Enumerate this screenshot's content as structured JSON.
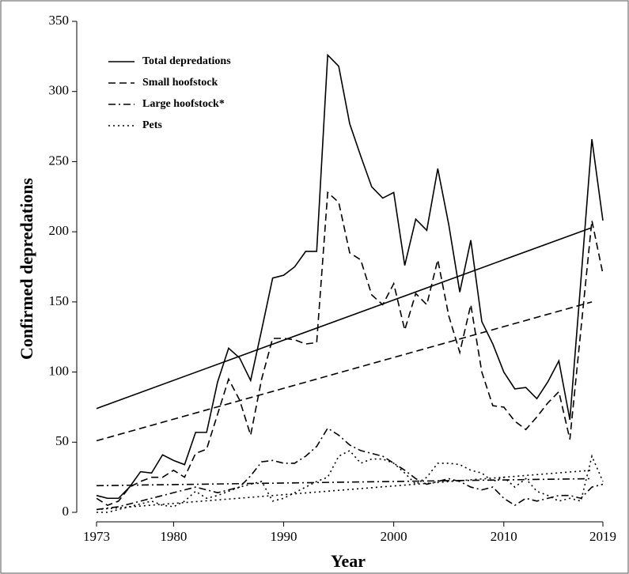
{
  "chart_data": {
    "type": "line",
    "xlabel": "Year",
    "ylabel": "Confirmed depredations",
    "x": [
      1973,
      1974,
      1975,
      1976,
      1977,
      1978,
      1979,
      1980,
      1981,
      1982,
      1983,
      1984,
      1985,
      1986,
      1987,
      1988,
      1989,
      1990,
      1991,
      1992,
      1993,
      1994,
      1995,
      1996,
      1997,
      1998,
      1999,
      2000,
      2001,
      2002,
      2003,
      2004,
      2005,
      2006,
      2007,
      2008,
      2009,
      2010,
      2011,
      2012,
      2013,
      2014,
      2015,
      2016,
      2017,
      2018,
      2019
    ],
    "trend_x": [
      1973,
      2018
    ],
    "series": [
      {
        "name": "Total depredations",
        "color": "#000000",
        "dash": "solid",
        "values": [
          12,
          10,
          10,
          18,
          29,
          28,
          41,
          37,
          34,
          57,
          57,
          93,
          117,
          110,
          94,
          130,
          167,
          169,
          175,
          186,
          186,
          326,
          318,
          277,
          254,
          232,
          224,
          228,
          176,
          209,
          201,
          245,
          205,
          157,
          194,
          136,
          120,
          100,
          88,
          89,
          81,
          93,
          108,
          66,
          165,
          266,
          208
        ],
        "trend": [
          74,
          203
        ]
      },
      {
        "name": "Small hoofstock",
        "color": "#000000",
        "dash": "dashed",
        "values": [
          10,
          5,
          8,
          18,
          22,
          25,
          25,
          30,
          25,
          42,
          45,
          70,
          95,
          80,
          55,
          95,
          124,
          124,
          123,
          120,
          121,
          228,
          221,
          185,
          180,
          155,
          148,
          163,
          130,
          156,
          148,
          180,
          140,
          114,
          148,
          100,
          76,
          75,
          65,
          59,
          68,
          78,
          86,
          52,
          130,
          208,
          170
        ],
        "trend": [
          51,
          150
        ]
      },
      {
        "name": "Large hoofstock*",
        "color": "#000000",
        "dash": "dashdot",
        "values": [
          2,
          3,
          4,
          6,
          8,
          10,
          12,
          14,
          16,
          18,
          16,
          14,
          16,
          18,
          26,
          36,
          37,
          35,
          35,
          40,
          47,
          60,
          55,
          48,
          44,
          42,
          40,
          35,
          30,
          24,
          20,
          22,
          24,
          22,
          18,
          16,
          18,
          10,
          5,
          10,
          8,
          10,
          12,
          12,
          10,
          18,
          20
        ],
        "trend": [
          19,
          24
        ]
      },
      {
        "name": "Pets",
        "color": "#000000",
        "dash": "dotted",
        "values": [
          0,
          0,
          2,
          4,
          6,
          8,
          5,
          4,
          8,
          15,
          10,
          12,
          15,
          18,
          20,
          22,
          8,
          10,
          14,
          18,
          22,
          25,
          40,
          44,
          35,
          38,
          38,
          35,
          28,
          20,
          25,
          35,
          35,
          34,
          30,
          28,
          22,
          25,
          18,
          24,
          15,
          12,
          8,
          10,
          8,
          40,
          22
        ],
        "trend": [
          2,
          30
        ]
      }
    ],
    "xlim": [
      1973,
      2019
    ],
    "xticks": [
      1973,
      1980,
      1990,
      2000,
      2010,
      2019
    ],
    "ylim": [
      0,
      350
    ],
    "yticks": [
      0,
      50,
      100,
      150,
      200,
      250,
      300,
      350
    ],
    "grid": false,
    "legend": "top-left"
  }
}
